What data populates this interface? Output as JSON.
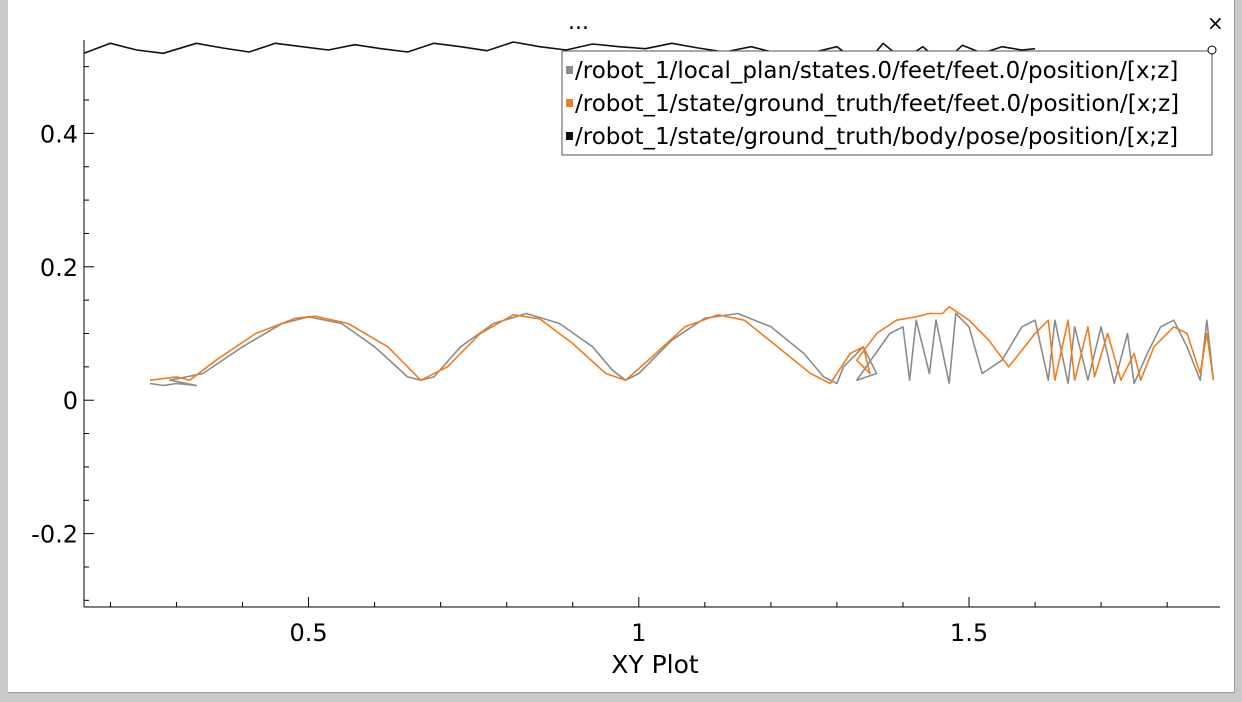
{
  "menu": {
    "more_label": "..."
  },
  "window": {
    "close_label": "×"
  },
  "chart_data": {
    "type": "line",
    "title": "",
    "xlabel": "XY Plot",
    "ylabel": "",
    "xlim": [
      0.16,
      1.88
    ],
    "ylim": [
      -0.31,
      0.54
    ],
    "xticks": [
      0.5,
      1,
      1.5
    ],
    "xtick_labels": [
      "0.5",
      "1",
      "1.5"
    ],
    "yticks": [
      -0.2,
      0,
      0.2,
      0.4
    ],
    "ytick_labels": [
      "-0.2",
      "0",
      "0.2",
      "0.4"
    ],
    "grid": false,
    "legend_position": "top-right",
    "series": [
      {
        "name": "/robot_1/local_plan/states.0/feet/feet.0/position/[x;z]",
        "color": "#8c8c8c",
        "x": [
          0.26,
          0.28,
          0.3,
          0.33,
          0.29,
          0.34,
          0.4,
          0.46,
          0.5,
          0.55,
          0.6,
          0.65,
          0.67,
          0.69,
          0.73,
          0.78,
          0.83,
          0.88,
          0.93,
          0.96,
          0.98,
          1.0,
          1.05,
          1.1,
          1.15,
          1.2,
          1.25,
          1.28,
          1.3,
          1.31,
          1.34,
          1.36,
          1.33,
          1.38,
          1.4,
          1.41,
          1.42,
          1.44,
          1.45,
          1.47,
          1.48,
          1.5,
          1.52,
          1.55,
          1.58,
          1.6,
          1.62,
          1.63,
          1.65,
          1.66,
          1.68,
          1.7,
          1.72,
          1.74,
          1.75,
          1.77,
          1.79,
          1.81,
          1.83,
          1.85,
          1.86,
          1.87
        ],
        "y": [
          0.025,
          0.022,
          0.025,
          0.022,
          0.03,
          0.04,
          0.08,
          0.115,
          0.125,
          0.115,
          0.08,
          0.035,
          0.03,
          0.035,
          0.08,
          0.115,
          0.13,
          0.115,
          0.08,
          0.045,
          0.03,
          0.04,
          0.09,
          0.123,
          0.13,
          0.11,
          0.07,
          0.035,
          0.025,
          0.05,
          0.08,
          0.04,
          0.03,
          0.1,
          0.11,
          0.03,
          0.12,
          0.04,
          0.12,
          0.025,
          0.13,
          0.11,
          0.04,
          0.06,
          0.11,
          0.12,
          0.03,
          0.12,
          0.025,
          0.11,
          0.03,
          0.11,
          0.025,
          0.1,
          0.025,
          0.07,
          0.11,
          0.12,
          0.08,
          0.03,
          0.12,
          0.03
        ]
      },
      {
        "name": "/robot_1/state/ground_truth/feet/feet.0/position/[x;z]",
        "color": "#f07d1e",
        "x": [
          0.26,
          0.3,
          0.32,
          0.36,
          0.42,
          0.48,
          0.51,
          0.56,
          0.62,
          0.67,
          0.71,
          0.76,
          0.81,
          0.85,
          0.9,
          0.95,
          0.98,
          1.02,
          1.07,
          1.12,
          1.16,
          1.21,
          1.26,
          1.29,
          1.3,
          1.32,
          1.34,
          1.35,
          1.33,
          1.36,
          1.39,
          1.42,
          1.44,
          1.46,
          1.47,
          1.5,
          1.53,
          1.56,
          1.6,
          1.62,
          1.63,
          1.65,
          1.66,
          1.68,
          1.69,
          1.71,
          1.73,
          1.75,
          1.76,
          1.78,
          1.81,
          1.83,
          1.85,
          1.86,
          1.87
        ],
        "y": [
          0.03,
          0.035,
          0.03,
          0.06,
          0.1,
          0.123,
          0.126,
          0.115,
          0.08,
          0.03,
          0.05,
          0.1,
          0.128,
          0.122,
          0.085,
          0.04,
          0.03,
          0.065,
          0.11,
          0.128,
          0.12,
          0.08,
          0.04,
          0.025,
          0.04,
          0.07,
          0.08,
          0.04,
          0.06,
          0.1,
          0.12,
          0.125,
          0.13,
          0.13,
          0.14,
          0.12,
          0.09,
          0.05,
          0.1,
          0.12,
          0.03,
          0.12,
          0.03,
          0.11,
          0.035,
          0.1,
          0.03,
          0.07,
          0.03,
          0.08,
          0.11,
          0.1,
          0.04,
          0.1,
          0.03
        ]
      },
      {
        "name": "/robot_1/state/ground_truth/body/pose/position/[x;z]",
        "color": "#111111",
        "x": [
          0.16,
          0.2,
          0.24,
          0.28,
          0.33,
          0.37,
          0.41,
          0.45,
          0.49,
          0.53,
          0.57,
          0.61,
          0.65,
          0.69,
          0.73,
          0.77,
          0.81,
          0.85,
          0.89,
          0.93,
          0.97,
          1.01,
          1.05,
          1.09,
          1.13,
          1.17,
          1.21,
          1.25,
          1.3,
          1.34,
          1.37,
          1.4,
          1.43,
          1.46,
          1.49,
          1.52,
          1.55,
          1.58,
          1.6
        ],
        "y": [
          0.52,
          0.535,
          0.525,
          0.52,
          0.535,
          0.528,
          0.522,
          0.535,
          0.53,
          0.525,
          0.533,
          0.527,
          0.522,
          0.535,
          0.53,
          0.524,
          0.537,
          0.53,
          0.525,
          0.534,
          0.53,
          0.527,
          0.535,
          0.528,
          0.522,
          0.53,
          0.52,
          0.518,
          0.53,
          0.5,
          0.535,
          0.51,
          0.53,
          0.505,
          0.532,
          0.52,
          0.53,
          0.525,
          0.527
        ]
      }
    ]
  }
}
